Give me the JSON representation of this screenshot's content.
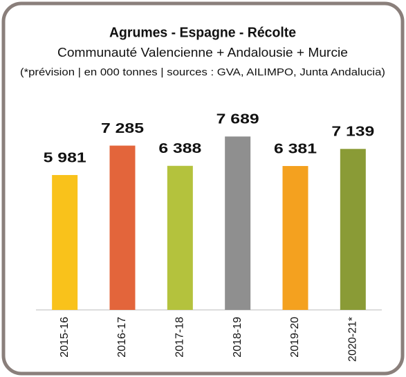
{
  "chart_data": {
    "type": "bar",
    "title": "Agrumes - Espagne - Récolte",
    "subtitle": "Communauté Valencienne + Andalousie + Murcie",
    "note": "(*prévision | en 000 tonnes | sources : GVA, AILIMPO, Junta Andalucia)",
    "categories": [
      "2015-16",
      "2016-17",
      "2017-18",
      "2018-19",
      "2019-20",
      "2020-21*"
    ],
    "values": [
      5981,
      7285,
      6388,
      7689,
      6381,
      7139
    ],
    "value_labels": [
      "5 981",
      "7 285",
      "6 388",
      "7 689",
      "6 381",
      "7 139"
    ],
    "colors": [
      "#f9c21b",
      "#e3653b",
      "#b4c23d",
      "#8f8f8f",
      "#f4a11f",
      "#8a9b36"
    ],
    "ylim": [
      0,
      10000
    ]
  }
}
